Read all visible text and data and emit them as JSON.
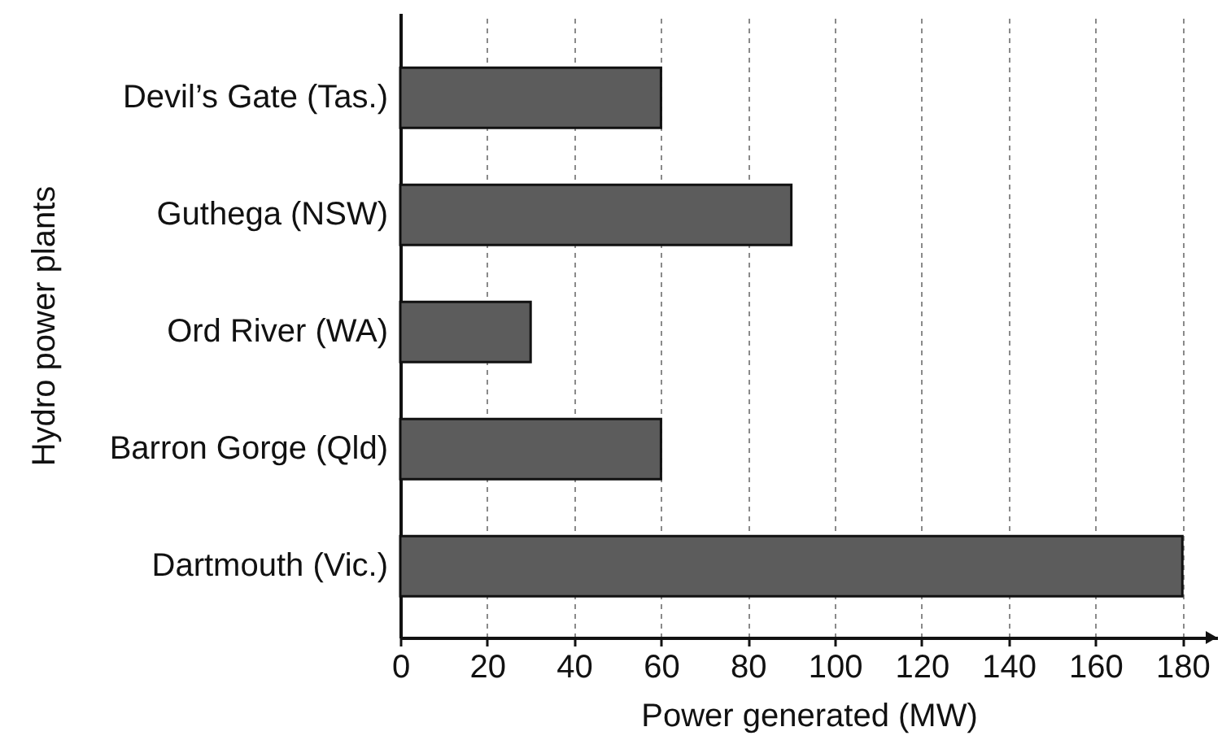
{
  "chart_data": {
    "type": "bar",
    "orientation": "horizontal",
    "categories": [
      "Devil’s Gate (Tas.)",
      "Guthega (NSW)",
      "Ord River (WA)",
      "Barron Gorge (Qld)",
      "Dartmouth (Vic.)"
    ],
    "values": [
      60,
      90,
      30,
      60,
      180
    ],
    "color": "#5c5c5c",
    "xlabel": "Power generated (MW)",
    "ylabel": "Hydro power plants",
    "xlim": [
      0,
      188
    ],
    "xticks": [
      0,
      20,
      40,
      60,
      80,
      100,
      120,
      140,
      160,
      180
    ],
    "grid": "x"
  }
}
